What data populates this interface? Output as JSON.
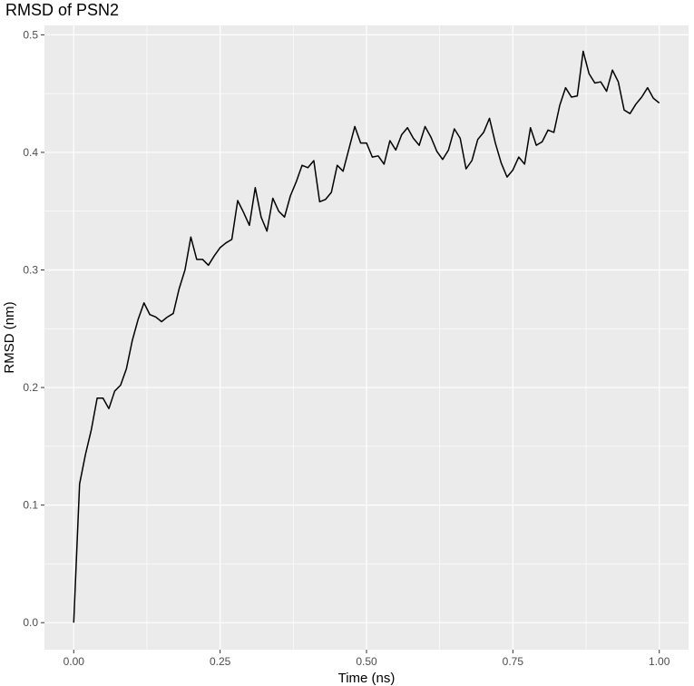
{
  "chart_data": {
    "type": "line",
    "title": "RMSD of PSN2",
    "xlabel": "Time (ns)",
    "ylabel": "RMSD (nm)",
    "xlim": [
      -0.05,
      1.05
    ],
    "ylim": [
      -0.023,
      0.508
    ],
    "x_ticks": [
      0.0,
      0.25,
      0.5,
      0.75,
      1.0
    ],
    "x_tick_labels": [
      "0.00",
      "0.25",
      "0.50",
      "0.75",
      "1.00"
    ],
    "y_ticks": [
      0.0,
      0.1,
      0.2,
      0.3,
      0.4,
      0.5
    ],
    "y_tick_labels": [
      "0.0",
      "0.1",
      "0.2",
      "0.3",
      "0.4",
      "0.5"
    ],
    "grid": true,
    "background_color": "#EBEBEB",
    "grid_color": "#FFFFFF",
    "line_color": "#000000",
    "series": [
      {
        "x": [
          0.0,
          0.01,
          0.02,
          0.03,
          0.04,
          0.05,
          0.06,
          0.07,
          0.08,
          0.09,
          0.1,
          0.11,
          0.12,
          0.13,
          0.14,
          0.15,
          0.16,
          0.17,
          0.18,
          0.19,
          0.2,
          0.21,
          0.22,
          0.23,
          0.24,
          0.25,
          0.26,
          0.27,
          0.28,
          0.29,
          0.3,
          0.31,
          0.32,
          0.33,
          0.34,
          0.35,
          0.36,
          0.37,
          0.38,
          0.39,
          0.4,
          0.41,
          0.42,
          0.43,
          0.44,
          0.45,
          0.46,
          0.47,
          0.48,
          0.49,
          0.5,
          0.51,
          0.52,
          0.53,
          0.54,
          0.55,
          0.56,
          0.57,
          0.58,
          0.59,
          0.6,
          0.61,
          0.62,
          0.63,
          0.64,
          0.65,
          0.66,
          0.67,
          0.68,
          0.69,
          0.7,
          0.71,
          0.72,
          0.73,
          0.74,
          0.75,
          0.76,
          0.77,
          0.78,
          0.79,
          0.8,
          0.81,
          0.82,
          0.83,
          0.84,
          0.85,
          0.86,
          0.87,
          0.88,
          0.89,
          0.9,
          0.91,
          0.92,
          0.93,
          0.94,
          0.95,
          0.96,
          0.97,
          0.98,
          0.99,
          1.0
        ],
        "values": [
          0.0,
          0.118,
          0.143,
          0.164,
          0.191,
          0.191,
          0.182,
          0.197,
          0.202,
          0.216,
          0.24,
          0.258,
          0.272,
          0.262,
          0.26,
          0.256,
          0.26,
          0.263,
          0.284,
          0.3,
          0.328,
          0.309,
          0.309,
          0.304,
          0.312,
          0.319,
          0.323,
          0.326,
          0.359,
          0.349,
          0.338,
          0.37,
          0.345,
          0.333,
          0.361,
          0.35,
          0.345,
          0.363,
          0.375,
          0.389,
          0.387,
          0.393,
          0.358,
          0.36,
          0.366,
          0.389,
          0.384,
          0.403,
          0.422,
          0.408,
          0.408,
          0.396,
          0.397,
          0.39,
          0.41,
          0.402,
          0.415,
          0.421,
          0.412,
          0.406,
          0.422,
          0.413,
          0.401,
          0.394,
          0.402,
          0.42,
          0.412,
          0.386,
          0.393,
          0.411,
          0.417,
          0.429,
          0.408,
          0.391,
          0.379,
          0.385,
          0.396,
          0.39,
          0.421,
          0.406,
          0.409,
          0.419,
          0.417,
          0.44,
          0.455,
          0.447,
          0.448,
          0.486,
          0.467,
          0.459,
          0.46,
          0.452,
          0.47,
          0.46,
          0.436,
          0.433,
          0.441,
          0.447,
          0.455,
          0.446,
          0.442
        ]
      }
    ]
  }
}
